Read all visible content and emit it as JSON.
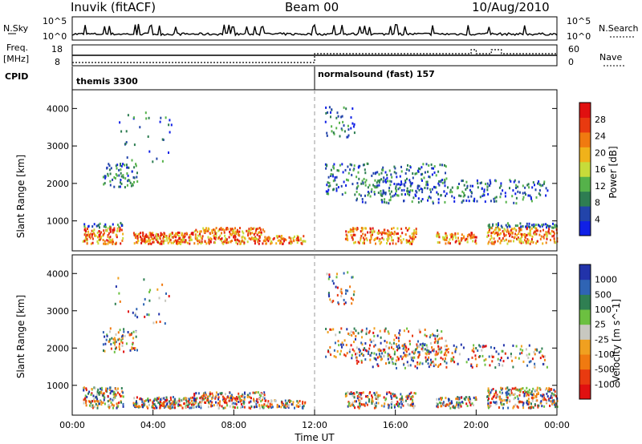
{
  "header": {
    "station": "Inuvik (fitACF)",
    "beam": "Beam 00",
    "date": "10/Aug/2010"
  },
  "colors": {
    "power_scale": [
      "#1020e6",
      "#2244aa",
      "#2e7d52",
      "#55b24a",
      "#c7dc3a",
      "#f0b21a",
      "#f07a10",
      "#e83a10",
      "#e01010"
    ],
    "velocity_scale": [
      "#2233aa",
      "#2f64b4",
      "#2f7f52",
      "#6cc040",
      "#c8c8c0",
      "#f0a020",
      "#f07a10",
      "#e83a10",
      "#e01010"
    ]
  },
  "chart_data": [
    {
      "type": "line",
      "title": "",
      "left_axis": {
        "label_top": "N.Sky",
        "ticks": [
          "10^5",
          "10^0"
        ]
      },
      "right_axis": {
        "label": "N.Search",
        "ticks": [
          "10^5",
          "10^0"
        ]
      },
      "xlim": [
        "00:00",
        "24:00"
      ]
    },
    {
      "type": "line",
      "left_axis": {
        "label_line1": "Freq.",
        "label_line2": "[MHz]",
        "ticks": [
          18,
          8
        ]
      },
      "right_axis": {
        "label": "Nave",
        "ticks": [
          60,
          0
        ]
      },
      "cpid_label": "CPID",
      "cpid_segments": [
        {
          "start": "00:00",
          "end": "12:00",
          "label": "themis 3300"
        },
        {
          "start": "12:00",
          "end": "24:00",
          "label": "normalsound (fast) 157"
        }
      ],
      "nave_steps": [
        {
          "start": "19:45",
          "end": "20:00",
          "level": "high"
        },
        {
          "start": "20:45",
          "end": "21:15",
          "level": "high"
        }
      ]
    },
    {
      "type": "heatmap",
      "ylabel": "Slant Range [km]",
      "yticks": [
        1000,
        2000,
        3000,
        4000
      ],
      "ylim": [
        200,
        4500
      ],
      "colorbar": {
        "label": "Power [dB]",
        "ticks": [
          "28",
          "24",
          "20",
          "16",
          "12",
          "8",
          "4"
        ]
      }
    },
    {
      "type": "heatmap",
      "ylabel": "Slant Range [km]",
      "yticks": [
        1000,
        2000,
        3000,
        4000
      ],
      "ylim": [
        200,
        4500
      ],
      "xlabel": "Time UT",
      "xticks": [
        "00:00",
        "04:00",
        "08:00",
        "12:00",
        "16:00",
        "20:00",
        "00:00"
      ],
      "colorbar": {
        "label": "Velocity [m s^-1]",
        "ticks": [
          "1000",
          "500",
          "100",
          "25",
          "-25",
          "-100",
          "-500",
          "-1000"
        ]
      }
    }
  ]
}
